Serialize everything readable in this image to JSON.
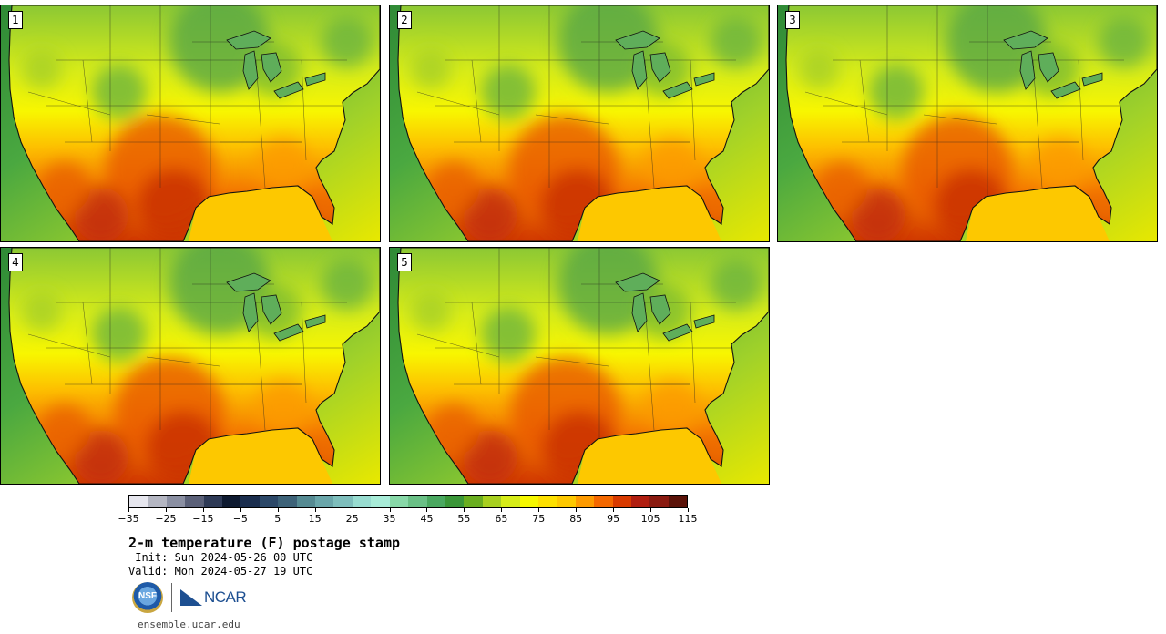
{
  "panels": [
    {
      "label": "1",
      "variant": 0
    },
    {
      "label": "2",
      "variant": 1
    },
    {
      "label": "3",
      "variant": 2
    },
    {
      "label": "4",
      "variant": 3
    },
    {
      "label": "5",
      "variant": 4
    }
  ],
  "colorbar": {
    "colors": [
      "#e6e6ee",
      "#b4b6c2",
      "#8a8fa2",
      "#5a6078",
      "#2e3a56",
      "#0e1a30",
      "#1b2e4e",
      "#2c4868",
      "#3d6278",
      "#558a92",
      "#6aa6aa",
      "#7ebebc",
      "#98dcd0",
      "#a8ecd8",
      "#88d8a8",
      "#6ac086",
      "#4aa860",
      "#3a9638",
      "#6aae20",
      "#a8d020",
      "#d6ec18",
      "#f6f800",
      "#fde000",
      "#fdc800",
      "#fd9a00",
      "#f46800",
      "#d83a00",
      "#b01e10",
      "#8a1a10",
      "#5a1208"
    ],
    "ticks": [
      "−35",
      "−25",
      "−15",
      "−5",
      "5",
      "15",
      "25",
      "35",
      "45",
      "55",
      "65",
      "75",
      "85",
      "95",
      "105",
      "115"
    ]
  },
  "title": "2-m temperature (F) postage stamp",
  "init": " Init: Sun 2024-05-26 00 UTC",
  "valid": "Valid: Mon 2024-05-27 19 UTC",
  "logo_nsf": "NSF",
  "logo_ncar": "NCAR",
  "url": "ensemble.ucar.edu"
}
